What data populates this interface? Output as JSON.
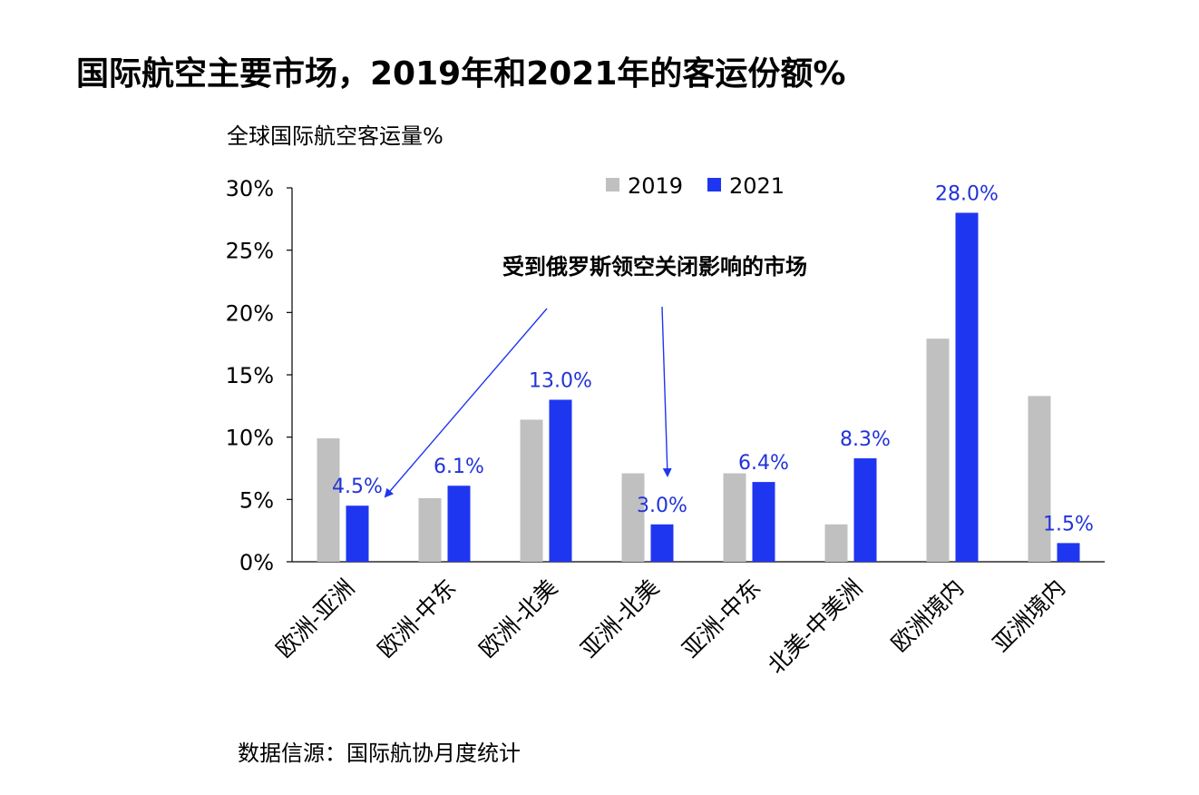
{
  "title": "国际航空主要市场，2019年和2021年的客运份额%",
  "source": "数据信源：国际航协月度统计",
  "annotation": "受到俄罗斯领空关闭影响的市场",
  "colors": {
    "s2019": "#c0c0c0",
    "s2021": "#1f36f0",
    "label": "#2233d8",
    "axis": "#000000"
  },
  "chart_data": {
    "type": "bar",
    "title": "国际航空主要市场，2019年和2021年的客运份额%",
    "ylabel": "全球国际航空客运量%",
    "xlabel": "",
    "categories": [
      "欧洲-亚洲",
      "欧洲-中东",
      "欧洲-北美",
      "亚洲-北美",
      "亚洲-中东",
      "北美-中美洲",
      "欧洲境内",
      "亚洲境内"
    ],
    "series": [
      {
        "name": "2019",
        "values": [
          9.9,
          5.1,
          11.4,
          7.1,
          7.1,
          3.0,
          17.9,
          13.3
        ]
      },
      {
        "name": "2021",
        "values": [
          4.5,
          6.1,
          13.0,
          3.0,
          6.4,
          8.3,
          28.0,
          1.5
        ]
      }
    ],
    "data_labels_2021": [
      "4.5%",
      "6.1%",
      "13.0%",
      "3.0%",
      "6.4%",
      "8.3%",
      "28.0%",
      "1.5%"
    ],
    "yticks": [
      "0%",
      "5%",
      "10%",
      "15%",
      "20%",
      "25%",
      "30%"
    ],
    "ylim": [
      0,
      30
    ],
    "grid": false,
    "legend": "top-center"
  }
}
